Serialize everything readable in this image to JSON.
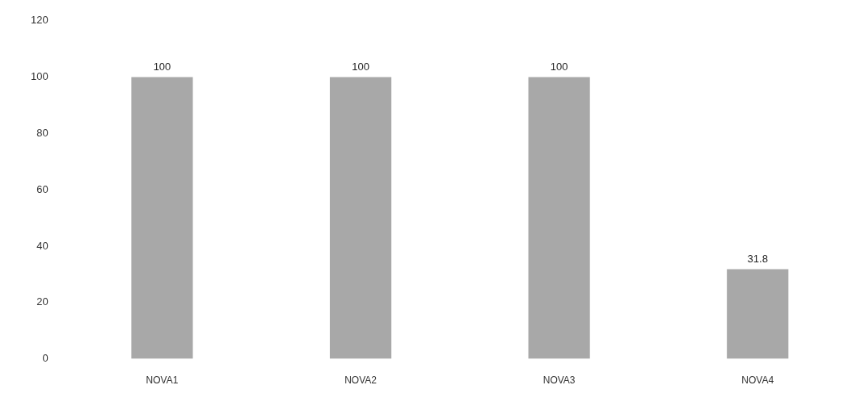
{
  "chart_data": {
    "type": "bar",
    "categories": [
      "NOVA1",
      "NOVA2",
      "NOVA3",
      "NOVA4"
    ],
    "values": [
      100,
      100,
      100,
      31.8
    ],
    "value_labels": [
      "100",
      "100",
      "100",
      "31.8"
    ],
    "color": "#a8a8a8",
    "ylim": [
      0,
      120
    ],
    "yticks": [
      0,
      20,
      40,
      60,
      80,
      100,
      120
    ],
    "grid": false,
    "legend": false
  }
}
